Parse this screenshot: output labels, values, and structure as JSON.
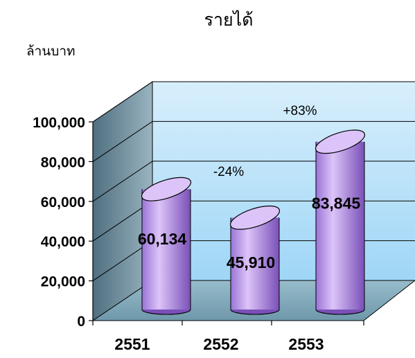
{
  "chart_data": {
    "type": "bar",
    "title": "รายได้",
    "ylabel": "ล้านบาท",
    "xlabel": "",
    "categories": [
      "2551",
      "2552",
      "2553"
    ],
    "values": [
      60134,
      45910,
      83845
    ],
    "data_labels": [
      "60,134",
      "45,910",
      "83,845"
    ],
    "ylim": [
      0,
      100000
    ],
    "yticks": [
      0,
      20000,
      40000,
      60000,
      80000,
      100000
    ],
    "ytick_labels": [
      "0",
      "20,000",
      "40,000",
      "60,000",
      "80,000",
      "100,000"
    ],
    "grid": true,
    "legend": "none",
    "style": "3d-cylinder",
    "annotations": [
      "-24%",
      "+83%"
    ],
    "colors": {
      "bar": "#c8a8f0",
      "bar_dark": "#7a50b8",
      "bar_top": "#dcc4f8",
      "back_wall": "#9fd6f6",
      "back_wall_top": "#d8effc",
      "side_wall": "#4f6f80",
      "side_wall_light": "#9ab4c0",
      "floor": "#7fa8b8"
    }
  }
}
